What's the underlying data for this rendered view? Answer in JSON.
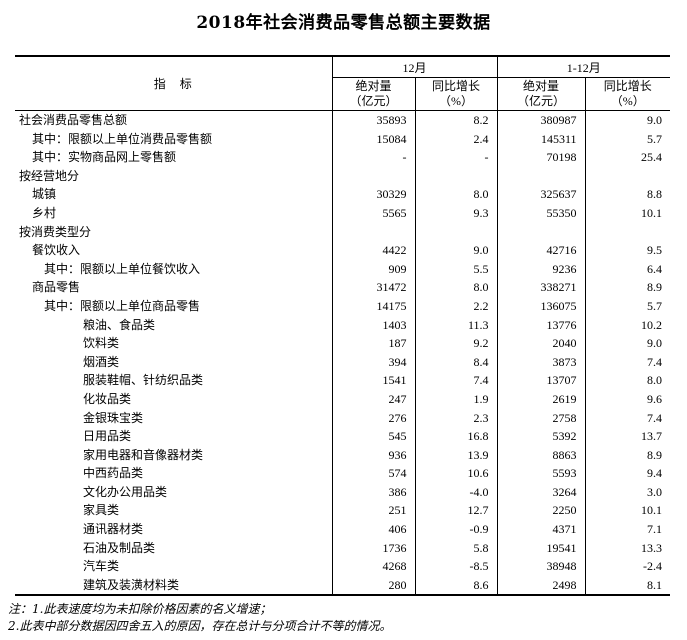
{
  "chart_data": {
    "type": "table",
    "title": "2018年社会消费品零售总额主要数据",
    "header": {
      "indicator": "指　标",
      "groups": [
        "12月",
        "1-12月"
      ],
      "abs_line1": "绝对量",
      "abs_line2": "（亿元）",
      "growth_line1": "同比增长",
      "growth_line2": "（%）"
    },
    "columns": [
      "指标",
      "12月 绝对量（亿元）",
      "12月 同比增长（%）",
      "1-12月 绝对量（亿元）",
      "1-12月 同比增长（%）"
    ],
    "rows": [
      {
        "label": "社会消费品零售总额",
        "indent": 0,
        "values": [
          "35893",
          "8.2",
          "380987",
          "9.0"
        ]
      },
      {
        "label": "其中：限额以上单位消费品零售额",
        "indent": 1,
        "values": [
          "15084",
          "2.4",
          "145311",
          "5.7"
        ]
      },
      {
        "label": "其中：实物商品网上零售额",
        "indent": 1,
        "values": [
          "-",
          "-",
          "70198",
          "25.4"
        ]
      },
      {
        "label": "按经营地分",
        "indent": 0,
        "values": [
          "",
          "",
          "",
          ""
        ]
      },
      {
        "label": "城镇",
        "indent": 1,
        "values": [
          "30329",
          "8.0",
          "325637",
          "8.8"
        ]
      },
      {
        "label": "乡村",
        "indent": 1,
        "values": [
          "5565",
          "9.3",
          "55350",
          "10.1"
        ]
      },
      {
        "label": "按消费类型分",
        "indent": 0,
        "values": [
          "",
          "",
          "",
          ""
        ]
      },
      {
        "label": "餐饮收入",
        "indent": 1,
        "values": [
          "4422",
          "9.0",
          "42716",
          "9.5"
        ]
      },
      {
        "label": "其中：限额以上单位餐饮收入",
        "indent": 2,
        "values": [
          "909",
          "5.5",
          "9236",
          "6.4"
        ]
      },
      {
        "label": "商品零售",
        "indent": 1,
        "values": [
          "31472",
          "8.0",
          "338271",
          "8.9"
        ]
      },
      {
        "label": "其中：限额以上单位商品零售",
        "indent": 2,
        "values": [
          "14175",
          "2.2",
          "136075",
          "5.7"
        ]
      },
      {
        "label": "粮油、食品类",
        "indent": 3,
        "values": [
          "1403",
          "11.3",
          "13776",
          "10.2"
        ]
      },
      {
        "label": "饮料类",
        "indent": 3,
        "values": [
          "187",
          "9.2",
          "2040",
          "9.0"
        ]
      },
      {
        "label": "烟酒类",
        "indent": 3,
        "values": [
          "394",
          "8.4",
          "3873",
          "7.4"
        ]
      },
      {
        "label": "服装鞋帽、针纺织品类",
        "indent": 3,
        "values": [
          "1541",
          "7.4",
          "13707",
          "8.0"
        ]
      },
      {
        "label": "化妆品类",
        "indent": 3,
        "values": [
          "247",
          "1.9",
          "2619",
          "9.6"
        ]
      },
      {
        "label": "金银珠宝类",
        "indent": 3,
        "values": [
          "276",
          "2.3",
          "2758",
          "7.4"
        ]
      },
      {
        "label": "日用品类",
        "indent": 3,
        "values": [
          "545",
          "16.8",
          "5392",
          "13.7"
        ]
      },
      {
        "label": "家用电器和音像器材类",
        "indent": 3,
        "values": [
          "936",
          "13.9",
          "8863",
          "8.9"
        ]
      },
      {
        "label": "中西药品类",
        "indent": 3,
        "values": [
          "574",
          "10.6",
          "5593",
          "9.4"
        ]
      },
      {
        "label": "文化办公用品类",
        "indent": 3,
        "values": [
          "386",
          "-4.0",
          "3264",
          "3.0"
        ]
      },
      {
        "label": "家具类",
        "indent": 3,
        "values": [
          "251",
          "12.7",
          "2250",
          "10.1"
        ]
      },
      {
        "label": "通讯器材类",
        "indent": 3,
        "values": [
          "406",
          "-0.9",
          "4371",
          "7.1"
        ]
      },
      {
        "label": "石油及制品类",
        "indent": 3,
        "values": [
          "1736",
          "5.8",
          "19541",
          "13.3"
        ]
      },
      {
        "label": "汽车类",
        "indent": 3,
        "values": [
          "4268",
          "-8.5",
          "38948",
          "-2.4"
        ]
      },
      {
        "label": "建筑及装潢材料类",
        "indent": 3,
        "values": [
          "280",
          "8.6",
          "2498",
          "8.1"
        ]
      }
    ],
    "notes": [
      "注：1.此表速度均为未扣除价格因素的名义增速；",
      "2.此表中部分数据因四舍五入的原因，存在总计与分项合计不等的情况。"
    ],
    "layout": {
      "grid": "off",
      "text_color": "#000000",
      "background_color": "#ffffff",
      "border_color": "#000000"
    }
  }
}
